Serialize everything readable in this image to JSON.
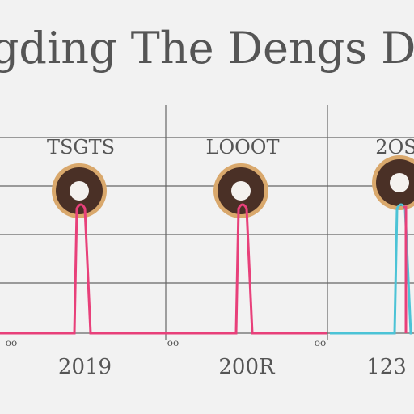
{
  "title": "oogding The Dengs Dt",
  "panels": [
    {
      "header": "TSGTS",
      "footer": "2019",
      "axis_mark": "oo",
      "line_color": "#e8407a"
    },
    {
      "header": "LOOOT",
      "footer": "200R",
      "axis_mark": "oo",
      "line_color": "#e8407a"
    },
    {
      "header": "2OS",
      "footer": "123",
      "axis_mark": "oo",
      "line_color": "#4cc3d6"
    }
  ]
}
